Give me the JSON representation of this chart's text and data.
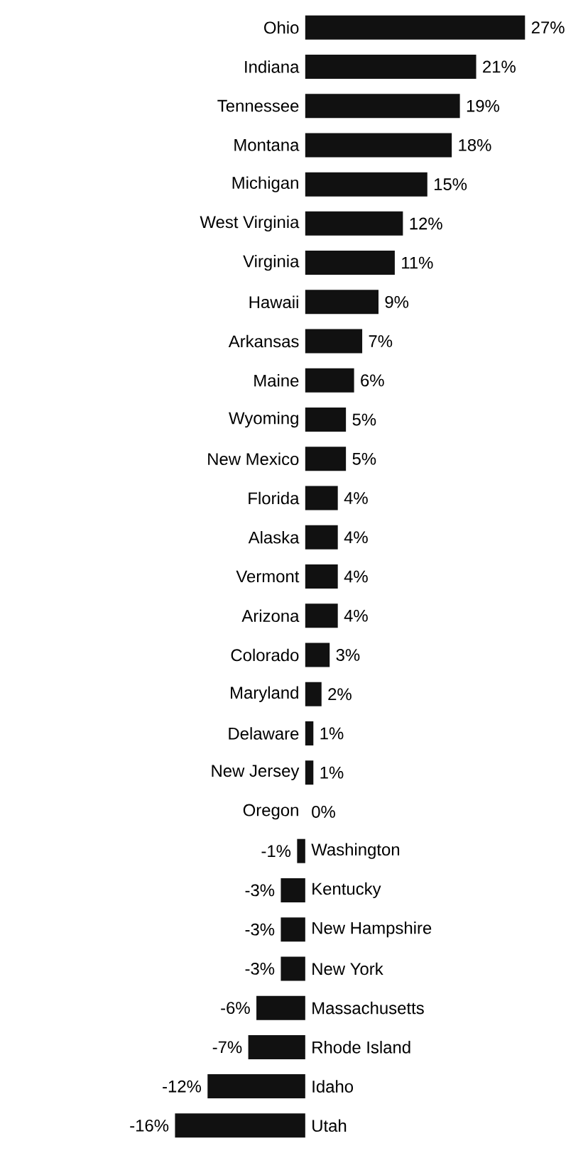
{
  "chart_data": {
    "type": "bar",
    "orientation": "horizontal",
    "color": "#111111",
    "categories": [
      "Ohio",
      "Indiana",
      "Tennessee",
      "Montana",
      "Michigan",
      "West Virginia",
      "Virginia",
      "Hawaii",
      "Arkansas",
      "Maine",
      "Wyoming",
      "New Mexico",
      "Florida",
      "Alaska",
      "Vermont",
      "Arizona",
      "Colorado",
      "Maryland",
      "Delaware",
      "New Jersey",
      "Oregon",
      "Washington",
      "Kentucky",
      "New Hampshire",
      "New York",
      "Massachusetts",
      "Rhode Island",
      "Idaho",
      "Utah"
    ],
    "values": [
      27,
      21,
      19,
      18,
      15,
      12,
      11,
      9,
      7,
      6,
      5,
      5,
      4,
      4,
      4,
      4,
      3,
      2,
      1,
      1,
      0,
      -1,
      -3,
      -3,
      -3,
      -6,
      -7,
      -12,
      -16
    ],
    "value_labels": [
      "27%",
      "21%",
      "19%",
      "18%",
      "15%",
      "12%",
      "11%",
      "9%",
      "7%",
      "6%",
      "5%",
      "5%",
      "4%",
      "4%",
      "4%",
      "4%",
      "3%",
      "2%",
      "1%",
      "1%",
      "0%",
      "-1%",
      "-3%",
      "-3%",
      "-3%",
      "-6%",
      "-7%",
      "-12%",
      "-16%"
    ]
  }
}
